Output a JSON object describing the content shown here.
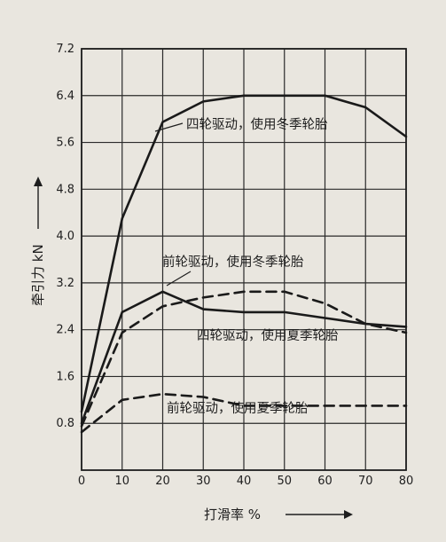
{
  "chart_data": {
    "type": "line",
    "xlabel": "打滑率 %",
    "ylabel": "牵引力 kN",
    "xlim": [
      0,
      80
    ],
    "ylim": [
      0,
      7.2
    ],
    "xticks": [
      0,
      10,
      20,
      30,
      40,
      50,
      60,
      70,
      80
    ],
    "yticks": [
      "0.8",
      "1.6",
      "2.4",
      "3.2",
      "4.0",
      "4.8",
      "5.6",
      "6.4",
      "7.2"
    ],
    "grid": true,
    "series": [
      {
        "name": "四轮驱动，使用冬季轮胎",
        "style": "solid",
        "points": [
          [
            0,
            1.0
          ],
          [
            10,
            4.3
          ],
          [
            20,
            5.95
          ],
          [
            30,
            6.3
          ],
          [
            40,
            6.4
          ],
          [
            50,
            6.4
          ],
          [
            60,
            6.4
          ],
          [
            70,
            6.2
          ],
          [
            80,
            5.7
          ]
        ]
      },
      {
        "name": "前轮驱动，使用冬季轮胎",
        "style": "solid",
        "points": [
          [
            0,
            0.8
          ],
          [
            10,
            2.7
          ],
          [
            20,
            3.05
          ],
          [
            30,
            2.75
          ],
          [
            40,
            2.7
          ],
          [
            50,
            2.7
          ],
          [
            60,
            2.6
          ],
          [
            70,
            2.5
          ],
          [
            80,
            2.45
          ]
        ]
      },
      {
        "name": "四轮驱动，使用夏季轮胎",
        "style": "dashed",
        "points": [
          [
            0,
            0.75
          ],
          [
            10,
            2.35
          ],
          [
            20,
            2.8
          ],
          [
            30,
            2.95
          ],
          [
            40,
            3.05
          ],
          [
            50,
            3.05
          ],
          [
            60,
            2.85
          ],
          [
            70,
            2.5
          ],
          [
            80,
            2.35
          ]
        ]
      },
      {
        "name": "前轮驱动，使用夏季轮胎",
        "style": "dashed",
        "points": [
          [
            0,
            0.65
          ],
          [
            10,
            1.2
          ],
          [
            20,
            1.3
          ],
          [
            30,
            1.25
          ],
          [
            40,
            1.1
          ],
          [
            50,
            1.1
          ],
          [
            60,
            1.1
          ],
          [
            70,
            1.1
          ],
          [
            80,
            1.1
          ]
        ]
      }
    ]
  }
}
